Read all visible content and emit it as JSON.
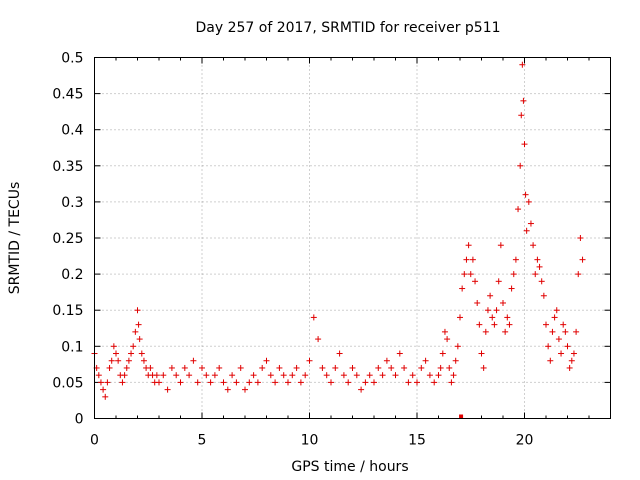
{
  "chart_data": {
    "type": "scatter",
    "title": "Day 257 of 2017, SRMTID for receiver p511",
    "xlabel": "GPS time / hours",
    "ylabel": "SRMTID / TECUs",
    "xlim": [
      0,
      24
    ],
    "ylim": [
      0,
      0.5
    ],
    "x_ticks": [
      0,
      5,
      10,
      15,
      20
    ],
    "x_tick_labels": [
      "0",
      "5",
      "10",
      "15",
      "20"
    ],
    "y_ticks": [
      0,
      0.05,
      0.1,
      0.15,
      0.2,
      0.25,
      0.3,
      0.35,
      0.4,
      0.45,
      0.5
    ],
    "y_tick_labels": [
      "0",
      "0.05",
      "0.1",
      "0.15",
      "0.2",
      "0.25",
      "0.3",
      "0.35",
      "0.4",
      "0.45",
      "0.5"
    ],
    "grid": true,
    "marker": "plus",
    "color": "#e00000",
    "series": [
      {
        "name": "SRMTID",
        "x": [
          0.0,
          0.1,
          0.2,
          0.3,
          0.4,
          0.5,
          0.6,
          0.7,
          0.8,
          0.9,
          1.0,
          1.1,
          1.2,
          1.3,
          1.4,
          1.5,
          1.6,
          1.7,
          1.8,
          1.9,
          2.0,
          2.05,
          2.1,
          2.2,
          2.3,
          2.4,
          2.5,
          2.6,
          2.7,
          2.8,
          2.9,
          3.0,
          3.2,
          3.4,
          3.6,
          3.8,
          4.0,
          4.2,
          4.4,
          4.6,
          4.8,
          5.0,
          5.2,
          5.4,
          5.6,
          5.8,
          6.0,
          6.2,
          6.4,
          6.6,
          6.8,
          7.0,
          7.2,
          7.4,
          7.6,
          7.8,
          8.0,
          8.2,
          8.4,
          8.6,
          8.8,
          9.0,
          9.2,
          9.4,
          9.6,
          9.8,
          10.0,
          10.2,
          10.4,
          10.6,
          10.8,
          11.0,
          11.2,
          11.4,
          11.6,
          11.8,
          12.0,
          12.2,
          12.4,
          12.6,
          12.8,
          13.0,
          13.2,
          13.4,
          13.6,
          13.8,
          14.0,
          14.2,
          14.4,
          14.6,
          14.8,
          15.0,
          15.2,
          15.4,
          15.6,
          15.8,
          16.0,
          16.1,
          16.2,
          16.3,
          16.4,
          16.5,
          16.6,
          16.7,
          16.8,
          16.9,
          17.0,
          17.1,
          17.2,
          17.3,
          17.4,
          17.5,
          17.6,
          17.7,
          17.8,
          17.9,
          18.0,
          18.1,
          18.2,
          18.3,
          18.4,
          18.5,
          18.6,
          18.7,
          18.8,
          18.9,
          19.0,
          19.1,
          19.2,
          19.3,
          19.4,
          19.5,
          19.6,
          19.7,
          19.8,
          19.85,
          19.9,
          19.95,
          20.0,
          20.05,
          20.1,
          20.2,
          20.3,
          20.4,
          20.5,
          20.6,
          20.7,
          20.8,
          20.9,
          21.0,
          21.1,
          21.2,
          21.3,
          21.4,
          21.5,
          21.6,
          21.7,
          21.8,
          21.9,
          22.0,
          22.1,
          22.2,
          22.3,
          22.4,
          22.5,
          22.6,
          22.7
        ],
        "y": [
          0.09,
          0.07,
          0.06,
          0.05,
          0.04,
          0.03,
          0.05,
          0.07,
          0.08,
          0.1,
          0.09,
          0.08,
          0.06,
          0.05,
          0.06,
          0.07,
          0.08,
          0.09,
          0.1,
          0.12,
          0.15,
          0.13,
          0.11,
          0.09,
          0.08,
          0.07,
          0.06,
          0.07,
          0.06,
          0.05,
          0.06,
          0.05,
          0.06,
          0.04,
          0.07,
          0.06,
          0.05,
          0.07,
          0.06,
          0.08,
          0.05,
          0.07,
          0.06,
          0.05,
          0.06,
          0.07,
          0.05,
          0.04,
          0.06,
          0.05,
          0.07,
          0.04,
          0.05,
          0.06,
          0.05,
          0.07,
          0.08,
          0.06,
          0.05,
          0.07,
          0.06,
          0.05,
          0.06,
          0.07,
          0.05,
          0.06,
          0.08,
          0.14,
          0.11,
          0.07,
          0.06,
          0.05,
          0.07,
          0.09,
          0.06,
          0.05,
          0.07,
          0.06,
          0.04,
          0.05,
          0.06,
          0.05,
          0.07,
          0.06,
          0.08,
          0.07,
          0.06,
          0.09,
          0.07,
          0.05,
          0.06,
          0.05,
          0.07,
          0.08,
          0.06,
          0.05,
          0.06,
          0.07,
          0.09,
          0.12,
          0.11,
          0.07,
          0.05,
          0.06,
          0.08,
          0.1,
          0.14,
          0.18,
          0.2,
          0.22,
          0.24,
          0.2,
          0.22,
          0.19,
          0.16,
          0.13,
          0.09,
          0.07,
          0.12,
          0.15,
          0.17,
          0.14,
          0.13,
          0.15,
          0.19,
          0.24,
          0.16,
          0.12,
          0.14,
          0.13,
          0.18,
          0.2,
          0.22,
          0.29,
          0.35,
          0.42,
          0.49,
          0.44,
          0.38,
          0.31,
          0.26,
          0.3,
          0.27,
          0.24,
          0.2,
          0.22,
          0.21,
          0.19,
          0.17,
          0.13,
          0.1,
          0.08,
          0.12,
          0.14,
          0.15,
          0.11,
          0.09,
          0.13,
          0.12,
          0.1,
          0.07,
          0.08,
          0.09,
          0.12,
          0.2,
          0.25,
          0.22
        ]
      }
    ],
    "special_points": [
      {
        "x": 17.05,
        "y": 0.0
      }
    ]
  }
}
